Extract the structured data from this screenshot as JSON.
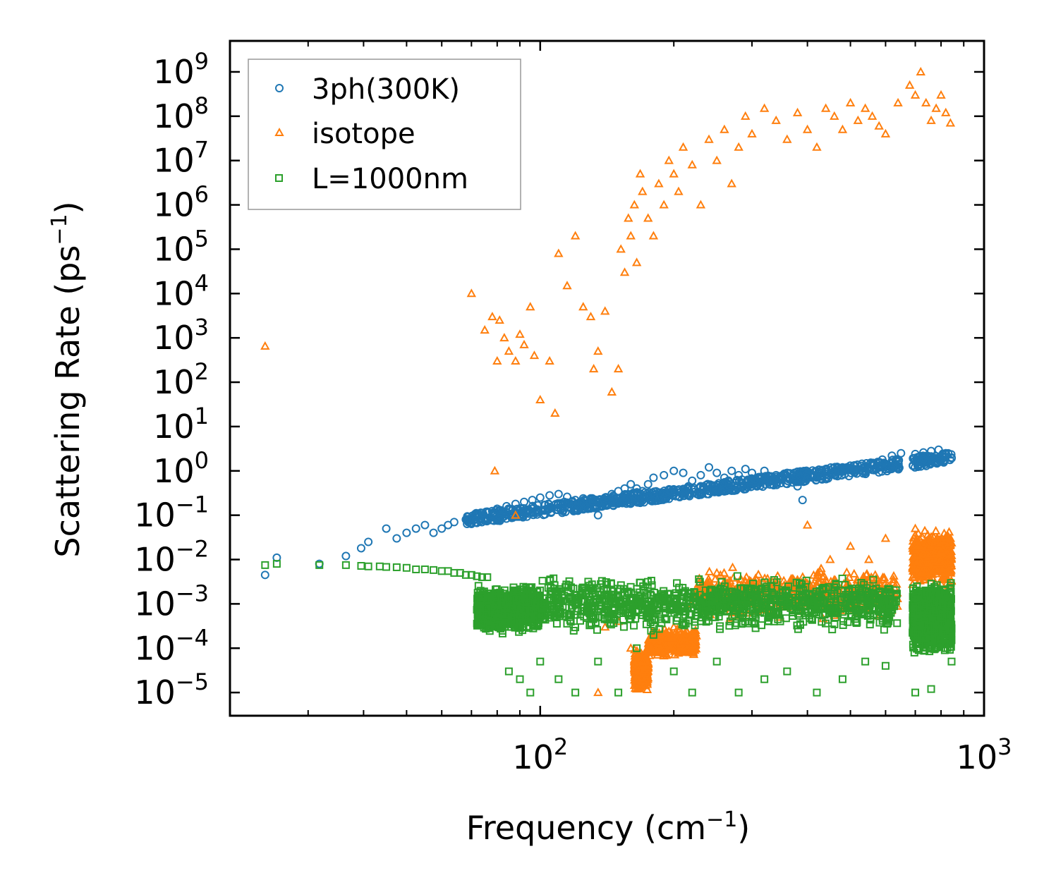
{
  "chart_data": {
    "type": "scatter",
    "title": "",
    "xlabel": "Frequency (cm",
    "xlabel_sup": "−1",
    "xlabel_tail": ")",
    "ylabel": "Scattering Rate (ps",
    "ylabel_sup": "−1",
    "ylabel_tail": ")",
    "xscale": "log",
    "yscale": "log",
    "xlim": [
      20,
      1000
    ],
    "ylim": [
      3e-06,
      5000000000.0
    ],
    "x_ticks": [
      {
        "value": 100,
        "base": "10",
        "exp": "2"
      },
      {
        "value": 1000,
        "base": "10",
        "exp": "3"
      }
    ],
    "y_ticks": [
      {
        "value": 1e-05,
        "base": "10",
        "exp": "−5"
      },
      {
        "value": 0.0001,
        "base": "10",
        "exp": "−4"
      },
      {
        "value": 0.001,
        "base": "10",
        "exp": "−3"
      },
      {
        "value": 0.01,
        "base": "10",
        "exp": "−2"
      },
      {
        "value": 0.1,
        "base": "10",
        "exp": "−1"
      },
      {
        "value": 1.0,
        "base": "10",
        "exp": "0"
      },
      {
        "value": 10.0,
        "base": "10",
        "exp": "1"
      },
      {
        "value": 100.0,
        "base": "10",
        "exp": "2"
      },
      {
        "value": 1000.0,
        "base": "10",
        "exp": "3"
      },
      {
        "value": 10000.0,
        "base": "10",
        "exp": "4"
      },
      {
        "value": 100000.0,
        "base": "10",
        "exp": "5"
      },
      {
        "value": 1000000.0,
        "base": "10",
        "exp": "6"
      },
      {
        "value": 10000000.0,
        "base": "10",
        "exp": "7"
      },
      {
        "value": 100000000.0,
        "base": "10",
        "exp": "8"
      },
      {
        "value": 1000000000.0,
        "base": "10",
        "exp": "9"
      }
    ],
    "legend_position": "top-left",
    "grid": false,
    "series": [
      {
        "name": "3ph(300K)",
        "marker": "circle",
        "color": "#1f77b4",
        "x": [
          24.0,
          25.5,
          31.8,
          36.5,
          39.5,
          41.0,
          45.0,
          47.5,
          50.0,
          52.5,
          55.0,
          57.5,
          60.0,
          62.0,
          64.0,
          68.0,
          72.0,
          76.0,
          80.0,
          84.0,
          88.0,
          92.0,
          96.0,
          100.0,
          105.0,
          110.0,
          115.0,
          120.0,
          125.0,
          130.0,
          135.0,
          140.0,
          145.0,
          150.0,
          155.0,
          160.0,
          165.0,
          170.0,
          175.0,
          180.0,
          190.0,
          200.0,
          210.0,
          220.0,
          230.0,
          240.0,
          250.0,
          260.0,
          270.0,
          280.0,
          290.0,
          300.0,
          320.0,
          340.0,
          360.0,
          380.0,
          390.0,
          400.0,
          420.0,
          440.0,
          460.0,
          480.0,
          500.0,
          530.0,
          560.0,
          590.0,
          620.0,
          650.0,
          700.0,
          730.0,
          760.0,
          790.0,
          820.0,
          845.0
        ],
        "y": [
          0.0045,
          0.011,
          0.008,
          0.012,
          0.018,
          0.025,
          0.05,
          0.03,
          0.04,
          0.05,
          0.06,
          0.04,
          0.05,
          0.06,
          0.07,
          0.08,
          0.1,
          0.12,
          0.14,
          0.16,
          0.18,
          0.2,
          0.22,
          0.25,
          0.28,
          0.3,
          0.26,
          0.22,
          0.24,
          0.2,
          0.1,
          0.25,
          0.3,
          0.35,
          0.4,
          0.5,
          0.4,
          0.35,
          0.5,
          0.7,
          0.8,
          1.0,
          0.9,
          0.6,
          0.8,
          1.2,
          0.9,
          0.7,
          1.0,
          0.8,
          1.1,
          0.9,
          1.0,
          0.8,
          0.9,
          0.45,
          0.22,
          0.9,
          1.0,
          1.1,
          1.0,
          1.2,
          1.1,
          1.3,
          1.5,
          1.8,
          2.2,
          2.5,
          2.4,
          2.6,
          2.8,
          3.0,
          2.5,
          2.0
        ]
      },
      {
        "name": "isotope",
        "marker": "triangle",
        "color": "#ff7f0e",
        "x": [
          24.0,
          70.0,
          75.0,
          78.0,
          80.0,
          81.0,
          83.0,
          85.0,
          88.0,
          90.0,
          92.0,
          95.0,
          97.0,
          100.0,
          105.0,
          108.0,
          110.0,
          115.0,
          120.0,
          125.0,
          130.0,
          132.0,
          135.0,
          140.0,
          145.0,
          150.0,
          152.0,
          155.0,
          158.0,
          160.0,
          163.0,
          165.0,
          168.0,
          170.0,
          175.0,
          180.0,
          185.0,
          190.0,
          195.0,
          200.0,
          205.0,
          210.0,
          220.0,
          230.0,
          240.0,
          250.0,
          260.0,
          270.0,
          280.0,
          290.0,
          300.0,
          320.0,
          340.0,
          360.0,
          380.0,
          400.0,
          420.0,
          440.0,
          460.0,
          480.0,
          500.0,
          520.0,
          540.0,
          560.0,
          580.0,
          600.0,
          640.0,
          680.0,
          700.0,
          720.0,
          740.0,
          760.0,
          780.0,
          800.0,
          820.0,
          840.0,
          79.0,
          88.0,
          135.0,
          165.0,
          250.0,
          400.0,
          450.0,
          500.0,
          550.0,
          600.0,
          700.0,
          750.0,
          800.0,
          840.0,
          140.0,
          150.0,
          160.0,
          165.0,
          170.0,
          180.0,
          200.0,
          220.0
        ],
        "y": [
          650.0,
          10000.0,
          1500.0,
          3000.0,
          300.0,
          2500.0,
          1000.0,
          500.0,
          300.0,
          1200.0,
          700.0,
          5000.0,
          400.0,
          40.0,
          300.0,
          20.0,
          80000.0,
          15000.0,
          200000.0,
          5000.0,
          3000.0,
          200.0,
          500.0,
          4000.0,
          60.0,
          200.0,
          100000.0,
          30000.0,
          500000.0,
          200000.0,
          1000000.0,
          50000.0,
          5000000.0,
          2000000.0,
          500000.0,
          200000.0,
          3000000.0,
          1000000.0,
          10000000.0,
          5000000.0,
          2000000.0,
          20000000.0,
          8000000.0,
          1000000.0,
          30000000.0,
          10000000.0,
          50000000.0,
          3000000.0,
          20000000.0,
          100000000.0,
          40000000.0,
          150000000.0,
          80000000.0,
          30000000.0,
          120000000.0,
          50000000.0,
          20000000.0,
          150000000.0,
          100000000.0,
          50000000.0,
          200000000.0,
          80000000.0,
          150000000.0,
          100000000.0,
          60000000.0,
          40000000.0,
          200000000.0,
          500000000.0,
          300000000.0,
          1000000000.0,
          200000000.0,
          80000000.0,
          150000000.0,
          300000000.0,
          120000000.0,
          70000000.0,
          1.0,
          0.1,
          1e-05,
          1.2e-05,
          0.005,
          0.06,
          0.01,
          0.02,
          0.01,
          0.03,
          0.05,
          0.02,
          0.015,
          0.03,
          0.0003,
          0.0004,
          0.0001,
          2e-05,
          5e-05,
          8e-05,
          0.0003,
          0.001
        ],
        "dense_bands": [
          {
            "x": [
              163,
              175
            ],
            "y": [
              1e-05,
              0.0001
            ]
          },
          {
            "x": [
              175,
              225
            ],
            "y": [
              6e-05,
              0.0003
            ]
          },
          {
            "x": [
              225,
              640
            ],
            "y": [
              0.0004,
              0.008
            ]
          },
          {
            "x": [
              690,
              845
            ],
            "y": [
              0.002,
              0.06
            ]
          }
        ]
      },
      {
        "name": "L=1000nm",
        "marker": "square",
        "color": "#2ca02c",
        "x": [
          24.0,
          25.5,
          31.8,
          36.5,
          39.5,
          41.0,
          43.5,
          45.0,
          47.5,
          50.0,
          52.5,
          55.0,
          57.5,
          60.0,
          62.0,
          64.0,
          66.0,
          68.0,
          70.0,
          72.0,
          74.0,
          76.0,
          80.0,
          85.0,
          90.0,
          95.0,
          100.0,
          110.0,
          120.0,
          135.0,
          150.0,
          165.0,
          180.0,
          200.0,
          220.0,
          250.0,
          280.0,
          320.0,
          360.0,
          420.0,
          480.0,
          540.0,
          600.0,
          700.0,
          760.0,
          820.0,
          845.0
        ],
        "y": [
          0.0075,
          0.008,
          0.0075,
          0.0075,
          0.0072,
          0.007,
          0.007,
          0.0068,
          0.0067,
          0.0065,
          0.006,
          0.006,
          0.0058,
          0.0055,
          0.0055,
          0.005,
          0.005,
          0.0045,
          0.0045,
          0.0042,
          0.004,
          0.004,
          0.001,
          3e-05,
          2e-05,
          1e-05,
          5e-05,
          2e-05,
          1e-05,
          5e-05,
          1e-05,
          0.0001,
          0.0002,
          3e-05,
          1e-05,
          5e-05,
          1e-05,
          2e-05,
          3e-05,
          1e-05,
          2e-05,
          5e-05,
          4e-05,
          1e-05,
          1.2e-05,
          0.0001,
          5e-05
        ],
        "dense_bands": [
          {
            "x": [
              72,
              100
            ],
            "y": [
              0.0002,
              0.003
            ]
          },
          {
            "x": [
              100,
              640
            ],
            "y": [
              0.0002,
              0.005
            ]
          },
          {
            "x": [
              690,
              845
            ],
            "y": [
              6e-05,
              0.004
            ]
          }
        ]
      }
    ]
  }
}
